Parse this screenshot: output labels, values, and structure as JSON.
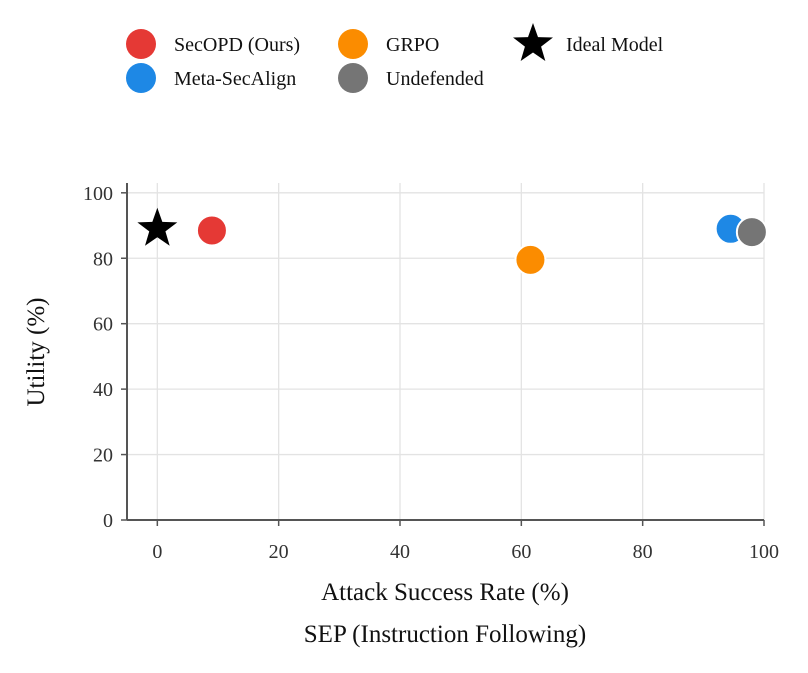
{
  "chart_data": {
    "type": "scatter",
    "xlabel": "Attack Success Rate (%)",
    "ylabel": "Utility (%)",
    "subtitle": "SEP (Instruction Following)",
    "xlim": [
      -5,
      100
    ],
    "ylim": [
      0,
      103
    ],
    "xticks": [
      "0",
      "20",
      "40",
      "60",
      "80",
      "100"
    ],
    "yticks": [
      "0",
      "20",
      "40",
      "60",
      "80",
      "100"
    ],
    "grid": true,
    "legend_position": "top",
    "series": [
      {
        "name": "SecOPD (Ours)",
        "color": "#e53935",
        "marker": "circle",
        "x": 9,
        "y": 88.5
      },
      {
        "name": "Meta-SecAlign",
        "color": "#1e88e5",
        "marker": "circle",
        "x": 94.5,
        "y": 89
      },
      {
        "name": "GRPO",
        "color": "#fb8c00",
        "marker": "circle",
        "x": 61.5,
        "y": 79.5
      },
      {
        "name": "Undefended",
        "color": "#757575",
        "marker": "circle",
        "x": 98,
        "y": 88
      },
      {
        "name": "Ideal Model",
        "color": "#000000",
        "marker": "star",
        "x": 0,
        "y": 89
      }
    ]
  }
}
